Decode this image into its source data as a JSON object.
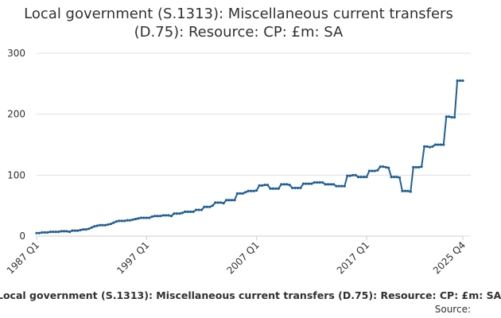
{
  "title": {
    "line1": "Local government (S.1313): Miscellaneous current transfers",
    "line2": "(D.75): Resource: CP: £m: SA"
  },
  "footer": {
    "legend": "Local government (S.1313): Miscellaneous current transfers (D.75): Resource: CP: £m: SA",
    "source": "Source:"
  },
  "colors": {
    "series": "#206095",
    "grid": "#e0e0e0",
    "text": "#323132"
  },
  "chart_data": {
    "type": "line",
    "title": "Local government (S.1313): Miscellaneous current transfers (D.75): Resource: CP: £m: SA",
    "xlabel": "",
    "ylabel": "",
    "ylim": [
      0,
      300
    ],
    "y_ticks": [
      0,
      100,
      200,
      300
    ],
    "x_range": [
      "1987 Q1",
      "2025 Q4"
    ],
    "x_tick_labels": [
      "1987 Q1",
      "1997 Q1",
      "2007 Q1",
      "2017 Q1",
      "2025 Q4"
    ],
    "grid": true,
    "series": [
      {
        "name": "Local government (S.1313): Miscellaneous current transfers (D.75): Resource: CP: £m: SA",
        "values": [
          5,
          5,
          6,
          6,
          6,
          7,
          7,
          7,
          7,
          8,
          8,
          8,
          7,
          9,
          9,
          9,
          10,
          11,
          11,
          12,
          14,
          16,
          17,
          18,
          18,
          18,
          19,
          20,
          22,
          24,
          25,
          25,
          25,
          26,
          26,
          27,
          28,
          29,
          30,
          30,
          30,
          30,
          32,
          33,
          33,
          33,
          34,
          34,
          34,
          33,
          37,
          37,
          37,
          38,
          40,
          40,
          40,
          40,
          43,
          43,
          43,
          48,
          48,
          48,
          50,
          55,
          55,
          55,
          54,
          59,
          59,
          59,
          59,
          70,
          70,
          70,
          72,
          74,
          74,
          74,
          75,
          83,
          83,
          84,
          84,
          78,
          78,
          78,
          78,
          85,
          85,
          85,
          84,
          79,
          79,
          79,
          79,
          86,
          86,
          86,
          86,
          88,
          88,
          88,
          88,
          85,
          85,
          85,
          85,
          82,
          82,
          82,
          82,
          99,
          99,
          100,
          100,
          97,
          97,
          97,
          97,
          107,
          107,
          107,
          108,
          114,
          114,
          113,
          112,
          97,
          97,
          97,
          96,
          74,
          74,
          74,
          73,
          113,
          113,
          113,
          114,
          147,
          147,
          146,
          147,
          150,
          150,
          150,
          150,
          196,
          196,
          195,
          195,
          255,
          255,
          255
        ]
      }
    ]
  }
}
